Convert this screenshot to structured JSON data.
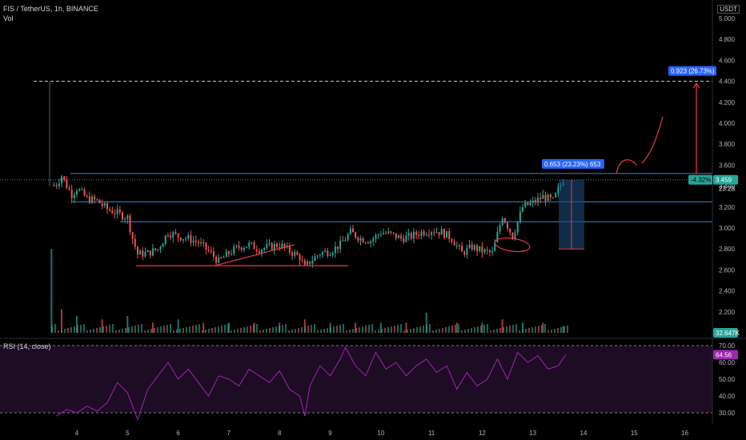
{
  "header": {
    "title": "FIS / TetherUS, 1h, BINANCE",
    "volume_label": "Vol",
    "currency_badge": "USDT",
    "rsi_label": "RSI (14, close)"
  },
  "colors": {
    "up": "#26a69a",
    "down": "#ef5350",
    "level_line": "#2962ff",
    "level_line_light": "#3f87c4",
    "annotation": "#f23645",
    "rsi_line": "#9c27b0",
    "rsi_fill": "#1e0b24"
  },
  "chart_data": [
    {
      "type": "candlestick",
      "title": "FIS / TetherUS, 1h, BINANCE",
      "x_ticks": [
        "4",
        "5",
        "6",
        "7",
        "8",
        "9",
        "10",
        "11",
        "12",
        "13",
        "14",
        "15",
        "16"
      ],
      "y_ticks": [
        "5.000",
        "4.800",
        "4.600",
        "4.400",
        "4.200",
        "4.000",
        "3.800",
        "3.600",
        "3.400",
        "3.200",
        "3.000",
        "2.800",
        "2.600",
        "2.400",
        "2.200"
      ],
      "ylim": [
        2.0,
        5.05
      ],
      "xlim": [
        3.0,
        16.5
      ],
      "grid": false,
      "current_price": "3.459",
      "current_price_time": "23:28",
      "percent_change_badge": "-4.32%",
      "target_label_1": "0.923 (26.73%)",
      "target_label_2": "0.653 (23.23%) 653",
      "levels": [
        4.4,
        3.52,
        3.25,
        3.06
      ],
      "support_line": 2.64,
      "close_path": [
        {
          "x": 3.5,
          "y": 3.4
        },
        {
          "x": 3.6,
          "y": 3.42
        },
        {
          "x": 3.7,
          "y": 3.5
        },
        {
          "x": 3.8,
          "y": 3.4
        },
        {
          "x": 3.9,
          "y": 3.32
        },
        {
          "x": 4.0,
          "y": 3.38
        },
        {
          "x": 4.2,
          "y": 3.28
        },
        {
          "x": 4.4,
          "y": 3.26
        },
        {
          "x": 4.6,
          "y": 3.18
        },
        {
          "x": 4.8,
          "y": 3.14
        },
        {
          "x": 5.0,
          "y": 3.1
        },
        {
          "x": 5.1,
          "y": 2.9
        },
        {
          "x": 5.2,
          "y": 2.75
        },
        {
          "x": 5.4,
          "y": 2.76
        },
        {
          "x": 5.6,
          "y": 2.8
        },
        {
          "x": 5.8,
          "y": 2.96
        },
        {
          "x": 6.0,
          "y": 2.92
        },
        {
          "x": 6.2,
          "y": 2.9
        },
        {
          "x": 6.4,
          "y": 2.86
        },
        {
          "x": 6.6,
          "y": 2.78
        },
        {
          "x": 6.8,
          "y": 2.68
        },
        {
          "x": 7.0,
          "y": 2.76
        },
        {
          "x": 7.2,
          "y": 2.82
        },
        {
          "x": 7.4,
          "y": 2.84
        },
        {
          "x": 7.6,
          "y": 2.8
        },
        {
          "x": 7.8,
          "y": 2.82
        },
        {
          "x": 8.0,
          "y": 2.84
        },
        {
          "x": 8.2,
          "y": 2.78
        },
        {
          "x": 8.4,
          "y": 2.72
        },
        {
          "x": 8.5,
          "y": 2.62
        },
        {
          "x": 8.6,
          "y": 2.68
        },
        {
          "x": 8.8,
          "y": 2.76
        },
        {
          "x": 9.0,
          "y": 2.78
        },
        {
          "x": 9.2,
          "y": 2.84
        },
        {
          "x": 9.4,
          "y": 2.96
        },
        {
          "x": 9.6,
          "y": 2.9
        },
        {
          "x": 9.8,
          "y": 2.88
        },
        {
          "x": 10.0,
          "y": 2.96
        },
        {
          "x": 10.2,
          "y": 2.94
        },
        {
          "x": 10.4,
          "y": 2.9
        },
        {
          "x": 10.6,
          "y": 2.92
        },
        {
          "x": 10.8,
          "y": 2.96
        },
        {
          "x": 11.0,
          "y": 2.98
        },
        {
          "x": 11.2,
          "y": 2.96
        },
        {
          "x": 11.4,
          "y": 2.9
        },
        {
          "x": 11.6,
          "y": 2.76
        },
        {
          "x": 11.8,
          "y": 2.82
        },
        {
          "x": 12.0,
          "y": 2.78
        },
        {
          "x": 12.2,
          "y": 2.76
        },
        {
          "x": 12.4,
          "y": 3.12
        },
        {
          "x": 12.6,
          "y": 2.92
        },
        {
          "x": 12.8,
          "y": 3.2
        },
        {
          "x": 13.0,
          "y": 3.24
        },
        {
          "x": 13.2,
          "y": 3.3
        },
        {
          "x": 13.4,
          "y": 3.26
        },
        {
          "x": 13.6,
          "y": 3.46
        }
      ],
      "volume": [
        {
          "x": 3.5,
          "v": 0.25
        },
        {
          "x": 3.7,
          "v": 0.07
        },
        {
          "x": 4.0,
          "v": 0.05
        },
        {
          "x": 4.5,
          "v": 0.04
        },
        {
          "x": 5.0,
          "v": 0.05
        },
        {
          "x": 5.5,
          "v": 0.03
        },
        {
          "x": 6.0,
          "v": 0.04
        },
        {
          "x": 6.5,
          "v": 0.03
        },
        {
          "x": 7.0,
          "v": 0.03
        },
        {
          "x": 7.5,
          "v": 0.03
        },
        {
          "x": 8.0,
          "v": 0.03
        },
        {
          "x": 8.5,
          "v": 0.04
        },
        {
          "x": 9.0,
          "v": 0.03
        },
        {
          "x": 9.5,
          "v": 0.03
        },
        {
          "x": 10.0,
          "v": 0.03
        },
        {
          "x": 10.5,
          "v": 0.03
        },
        {
          "x": 10.9,
          "v": 0.06
        },
        {
          "x": 11.5,
          "v": 0.03
        },
        {
          "x": 12.0,
          "v": 0.03
        },
        {
          "x": 12.4,
          "v": 0.04
        },
        {
          "x": 12.8,
          "v": 0.03
        },
        {
          "x": 13.2,
          "v": 0.03
        },
        {
          "x": 13.6,
          "v": 0.02
        }
      ],
      "volume_label": "32.647K"
    },
    {
      "type": "line",
      "title": "RSI (14, close)",
      "y_ticks": [
        "70.00",
        "60.00",
        "50.00",
        "40.00",
        "30.00"
      ],
      "ylim": [
        22,
        74
      ],
      "bands": [
        30,
        70
      ],
      "current_value": "64.56",
      "values": [
        {
          "x": 3.6,
          "y": 28
        },
        {
          "x": 3.8,
          "y": 32
        },
        {
          "x": 4.0,
          "y": 30
        },
        {
          "x": 4.2,
          "y": 34
        },
        {
          "x": 4.4,
          "y": 31
        },
        {
          "x": 4.6,
          "y": 36
        },
        {
          "x": 4.8,
          "y": 48
        },
        {
          "x": 5.0,
          "y": 42
        },
        {
          "x": 5.2,
          "y": 26
        },
        {
          "x": 5.4,
          "y": 44
        },
        {
          "x": 5.6,
          "y": 52
        },
        {
          "x": 5.8,
          "y": 60
        },
        {
          "x": 6.0,
          "y": 50
        },
        {
          "x": 6.2,
          "y": 56
        },
        {
          "x": 6.4,
          "y": 48
        },
        {
          "x": 6.6,
          "y": 40
        },
        {
          "x": 6.8,
          "y": 52
        },
        {
          "x": 7.0,
          "y": 50
        },
        {
          "x": 7.2,
          "y": 46
        },
        {
          "x": 7.4,
          "y": 56
        },
        {
          "x": 7.6,
          "y": 52
        },
        {
          "x": 7.8,
          "y": 48
        },
        {
          "x": 8.0,
          "y": 55
        },
        {
          "x": 8.2,
          "y": 44
        },
        {
          "x": 8.4,
          "y": 40
        },
        {
          "x": 8.5,
          "y": 28
        },
        {
          "x": 8.6,
          "y": 46
        },
        {
          "x": 8.8,
          "y": 58
        },
        {
          "x": 9.0,
          "y": 52
        },
        {
          "x": 9.2,
          "y": 62
        },
        {
          "x": 9.3,
          "y": 69
        },
        {
          "x": 9.5,
          "y": 58
        },
        {
          "x": 9.7,
          "y": 52
        },
        {
          "x": 9.9,
          "y": 66
        },
        {
          "x": 10.1,
          "y": 56
        },
        {
          "x": 10.3,
          "y": 60
        },
        {
          "x": 10.5,
          "y": 52
        },
        {
          "x": 10.7,
          "y": 58
        },
        {
          "x": 10.9,
          "y": 62
        },
        {
          "x": 11.1,
          "y": 54
        },
        {
          "x": 11.3,
          "y": 58
        },
        {
          "x": 11.5,
          "y": 44
        },
        {
          "x": 11.7,
          "y": 54
        },
        {
          "x": 11.9,
          "y": 46
        },
        {
          "x": 12.1,
          "y": 50
        },
        {
          "x": 12.3,
          "y": 62
        },
        {
          "x": 12.5,
          "y": 50
        },
        {
          "x": 12.7,
          "y": 66
        },
        {
          "x": 12.9,
          "y": 60
        },
        {
          "x": 13.1,
          "y": 64
        },
        {
          "x": 13.3,
          "y": 56
        },
        {
          "x": 13.5,
          "y": 58
        },
        {
          "x": 13.65,
          "y": 64.56
        }
      ]
    }
  ]
}
